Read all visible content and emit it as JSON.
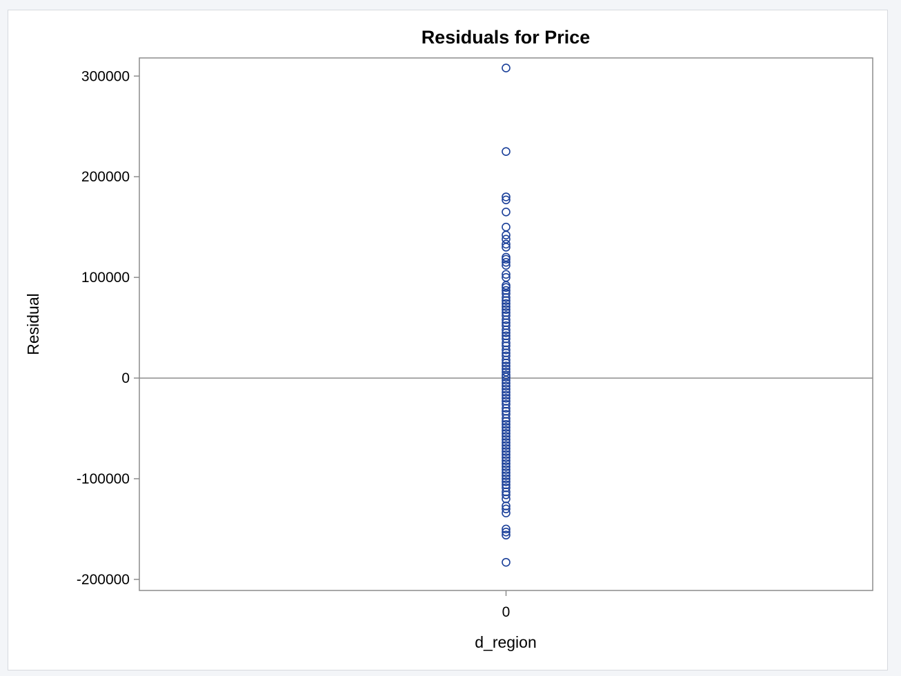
{
  "chart_data": {
    "type": "scatter",
    "title": "Residuals for Price",
    "xlabel": "d_region",
    "ylabel": "Residual",
    "x_ticks": [
      "0"
    ],
    "y_ticks": [
      -200000,
      -100000,
      0,
      100000,
      200000,
      300000
    ],
    "y_tick_labels": [
      "-200000",
      "-100000",
      "0",
      "100000",
      "200000",
      "300000"
    ],
    "ylim": [
      -211000,
      318000
    ],
    "reference_line_y": 0,
    "grid": false,
    "legend": "none",
    "marker": "open-circle",
    "marker_color": "#1a3f99",
    "series": [
      {
        "x": 0,
        "values": [
          308000,
          225000,
          180000,
          177000,
          165000,
          150000,
          142000,
          138000,
          133000,
          130000,
          120000,
          118000,
          115000,
          112000,
          103000,
          100000,
          92000,
          90000,
          87000,
          84000,
          80000,
          77000,
          74000,
          71000,
          68000,
          65000,
          62000,
          58000,
          55000,
          52000,
          48000,
          45000,
          42000,
          39000,
          35000,
          32000,
          28000,
          25000,
          22000,
          18000,
          15000,
          12000,
          9000,
          6000,
          3000,
          1000,
          -2000,
          -5000,
          -8000,
          -11000,
          -14000,
          -17000,
          -20000,
          -23000,
          -26000,
          -30000,
          -33000,
          -36000,
          -40000,
          -43000,
          -46000,
          -49000,
          -52000,
          -55000,
          -58000,
          -61000,
          -64000,
          -67000,
          -70000,
          -73000,
          -76000,
          -79000,
          -82000,
          -85000,
          -88000,
          -91000,
          -94000,
          -97000,
          -100000,
          -103000,
          -106000,
          -109000,
          -113000,
          -116000,
          -120000,
          -127000,
          -130000,
          -134000,
          -150000,
          -153000,
          -156000,
          -183000
        ]
      }
    ]
  }
}
